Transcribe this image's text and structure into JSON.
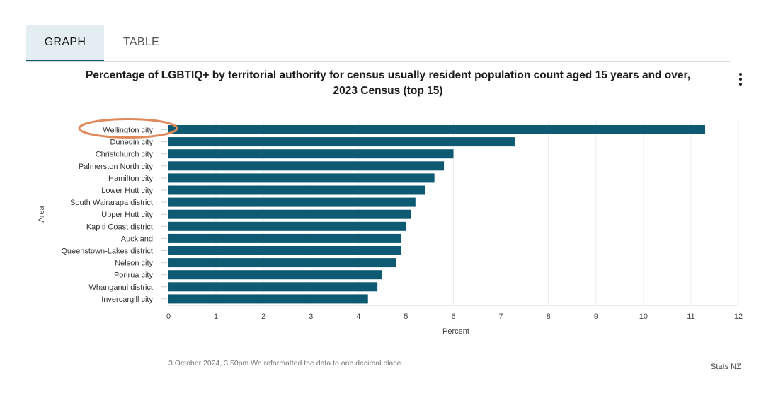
{
  "tabs": [
    {
      "label": "GRAPH",
      "active": true
    },
    {
      "label": "TABLE",
      "active": false
    }
  ],
  "menu_icon": "more-vertical-icon",
  "footnote": "3 October 2024, 3:50pm We reformatted the data to one decimal place.",
  "credit": "Stats NZ",
  "colors": {
    "bar": "#0f5a73",
    "highlight_ring": "#e08a5c",
    "grid": "#e6eef3"
  },
  "chart_data": {
    "type": "bar",
    "orientation": "horizontal",
    "title_line1": "Percentage of LGBTIQ+ by territorial authority for census usually resident population count aged 15 years and over,",
    "title_line2": "2023 Census (top 15)",
    "xlabel": "Percent",
    "ylabel": "Area",
    "xlim": [
      0,
      12
    ],
    "xticks": [
      "0",
      "1",
      "2",
      "3",
      "4",
      "5",
      "6",
      "7",
      "8",
      "9",
      "10",
      "11",
      "12"
    ],
    "grid": true,
    "highlighted_category": "Wellington city",
    "categories": [
      "Wellington city",
      "Dunedin city",
      "Christchurch city",
      "Palmerston North city",
      "Hamilton city",
      "Lower Hutt city",
      "South Wairarapa district",
      "Upper Hutt city",
      "Kapiti Coast district",
      "Auckland",
      "Queenstown-Lakes district",
      "Nelson city",
      "Porirua city",
      "Whanganui district",
      "Invercargill city"
    ],
    "values": [
      11.3,
      7.3,
      6.0,
      5.8,
      5.6,
      5.4,
      5.2,
      5.1,
      5.0,
      4.9,
      4.9,
      4.8,
      4.5,
      4.4,
      4.2
    ]
  }
}
